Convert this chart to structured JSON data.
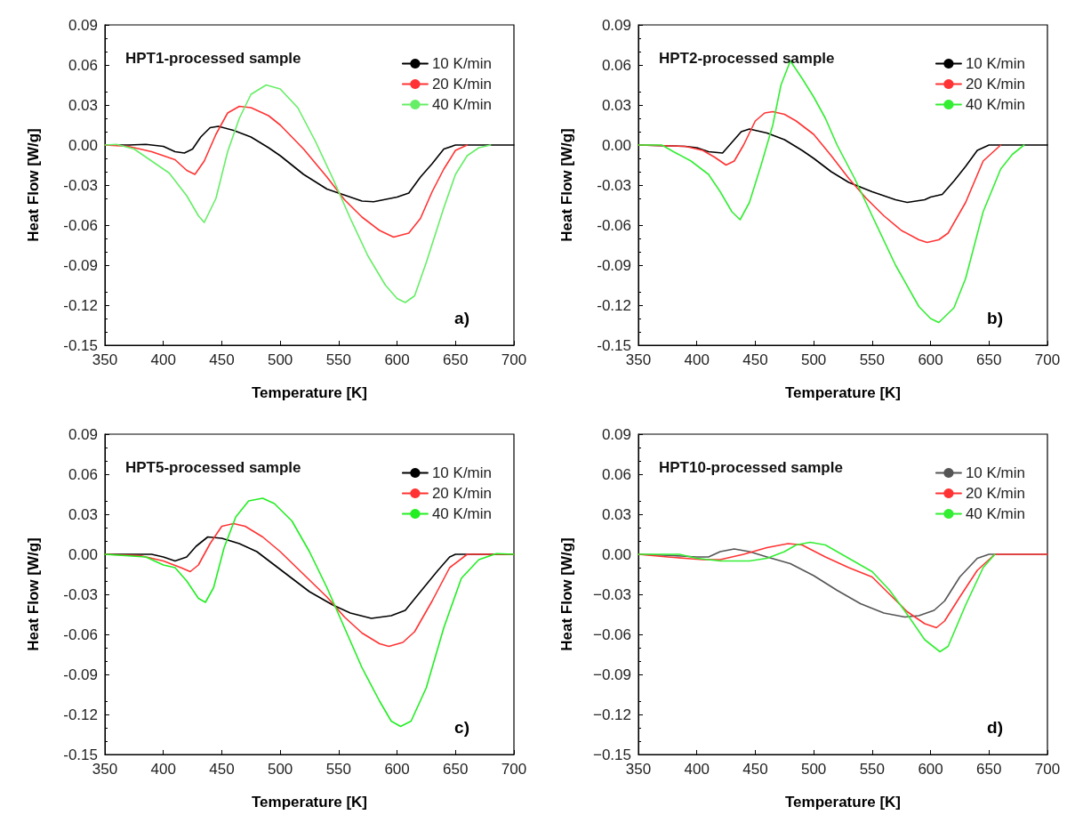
{
  "chart_data": [
    {
      "type": "line",
      "title": "HPT1-processed sample",
      "xlabel": "Temperature [K]",
      "ylabel": "Heat Flow [W/g]",
      "annotations": [
        "a)"
      ],
      "legend": "top right",
      "grid": false,
      "marker": "none",
      "line_style": "solid",
      "xlim": [
        350,
        700
      ],
      "xticks": [
        350,
        400,
        450,
        500,
        550,
        600,
        650,
        700
      ],
      "ylim": [
        -0.15,
        0.09
      ],
      "yticks": [
        {
          "value": -0.15,
          "label": "-0.15"
        },
        {
          "value": -0.12,
          "label": "-0.12"
        },
        {
          "value": -0.09,
          "label": "-0.09"
        },
        {
          "value": -0.06,
          "label": "-0.06"
        },
        {
          "value": -0.03,
          "label": "-0.03"
        },
        {
          "value": 0,
          "label": "0.00"
        },
        {
          "value": 0.03,
          "label": "0.03"
        },
        {
          "value": 0.06,
          "label": "0.06"
        },
        {
          "value": 0.09,
          "label": "0.09"
        }
      ],
      "series": [
        {
          "name": "10 K/min",
          "color": "#000000",
          "x": [
            350,
            370,
            385,
            400,
            410,
            418,
            425,
            432,
            440,
            447,
            460,
            475,
            490,
            500,
            520,
            540,
            560,
            570,
            580,
            600,
            610,
            620,
            630,
            640,
            650,
            700
          ],
          "values": [
            0,
            0,
            0.0005,
            -0.001,
            -0.005,
            -0.006,
            -0.003,
            0.006,
            0.013,
            0.014,
            0.011,
            0.006,
            -0.002,
            -0.008,
            -0.022,
            -0.033,
            -0.039,
            -0.042,
            -0.0425,
            -0.039,
            -0.036,
            -0.024,
            -0.014,
            -0.003,
            0,
            0
          ]
        },
        {
          "name": "20 K/min",
          "color": "#ff3333",
          "x": [
            350,
            370,
            390,
            410,
            420,
            427,
            435,
            445,
            455,
            465,
            475,
            490,
            500,
            520,
            540,
            555,
            570,
            585,
            597,
            610,
            620,
            630,
            640,
            650,
            660
          ],
          "values": [
            0,
            -0.001,
            -0.005,
            -0.011,
            -0.019,
            -0.022,
            -0.012,
            0.008,
            0.024,
            0.029,
            0.028,
            0.022,
            0.015,
            -0.003,
            -0.024,
            -0.041,
            -0.054,
            -0.064,
            -0.069,
            -0.066,
            -0.055,
            -0.035,
            -0.018,
            -0.004,
            0
          ]
        },
        {
          "name": "40 K/min",
          "color": "#66ee66",
          "x": [
            350,
            360,
            375,
            390,
            405,
            420,
            430,
            435,
            445,
            455,
            465,
            475,
            488,
            500,
            515,
            530,
            545,
            560,
            575,
            590,
            600,
            607,
            615,
            625,
            640,
            650,
            660,
            670,
            680
          ],
          "values": [
            0,
            0.0005,
            -0.003,
            -0.012,
            -0.021,
            -0.038,
            -0.053,
            -0.058,
            -0.04,
            -0.005,
            0.02,
            0.038,
            0.045,
            0.042,
            0.028,
            0.003,
            -0.025,
            -0.055,
            -0.083,
            -0.105,
            -0.115,
            -0.118,
            -0.113,
            -0.088,
            -0.047,
            -0.022,
            -0.008,
            -0.002,
            0
          ]
        }
      ]
    },
    {
      "type": "line",
      "title": "HPT2-processed sample",
      "xlabel": "Temperature [K]",
      "ylabel": "Heat Flow [W/g]",
      "annotations": [
        "b)"
      ],
      "legend": "top right",
      "grid": false,
      "marker": "none",
      "line_style": "solid",
      "xlim": [
        350,
        700
      ],
      "xticks": [
        350,
        400,
        450,
        500,
        550,
        600,
        650,
        700
      ],
      "ylim": [
        -0.15,
        0.09
      ],
      "yticks": [
        {
          "value": -0.15,
          "label": "-0.15"
        },
        {
          "value": -0.12,
          "label": "-0.12"
        },
        {
          "value": -0.09,
          "label": "-0.09"
        },
        {
          "value": -0.06,
          "label": "-0.06"
        },
        {
          "value": -0.03,
          "label": "-0.03"
        },
        {
          "value": 0,
          "label": "0.00"
        },
        {
          "value": 0.03,
          "label": "0.03"
        },
        {
          "value": 0.06,
          "label": "0.06"
        },
        {
          "value": 0.09,
          "label": "0.09"
        }
      ],
      "series": [
        {
          "name": "10 K/min",
          "color": "#000000",
          "x": [
            350,
            390,
            400,
            410,
            422,
            430,
            438,
            445,
            460,
            475,
            490,
            500,
            515,
            530,
            550,
            570,
            580,
            595,
            600,
            610,
            620,
            630,
            640,
            650,
            700
          ],
          "values": [
            0,
            -0.001,
            -0.002,
            -0.005,
            -0.006,
            0.002,
            0.01,
            0.012,
            0.009,
            0.004,
            -0.004,
            -0.01,
            -0.02,
            -0.028,
            -0.035,
            -0.041,
            -0.043,
            -0.041,
            -0.039,
            -0.037,
            -0.027,
            -0.016,
            -0.004,
            0,
            0
          ]
        },
        {
          "name": "20 K/min",
          "color": "#ff3333",
          "x": [
            350,
            390,
            405,
            415,
            425,
            432,
            440,
            450,
            458,
            465,
            475,
            485,
            500,
            515,
            530,
            545,
            560,
            575,
            590,
            597,
            607,
            615,
            630,
            645,
            660
          ],
          "values": [
            0,
            -0.001,
            -0.004,
            -0.009,
            -0.015,
            -0.012,
            0,
            0.018,
            0.024,
            0.025,
            0.023,
            0.018,
            0.008,
            -0.008,
            -0.025,
            -0.04,
            -0.053,
            -0.064,
            -0.071,
            -0.073,
            -0.071,
            -0.066,
            -0.043,
            -0.012,
            0
          ]
        },
        {
          "name": "40 K/min",
          "color": "#33ee33",
          "x": [
            350,
            370,
            380,
            395,
            410,
            420,
            430,
            437,
            445,
            455,
            465,
            472,
            480,
            490,
            500,
            510,
            520,
            535,
            550,
            570,
            590,
            600,
            607,
            620,
            630,
            645,
            660,
            670,
            680
          ],
          "values": [
            0,
            0,
            -0.005,
            -0.012,
            -0.022,
            -0.035,
            -0.05,
            -0.056,
            -0.043,
            -0.015,
            0.015,
            0.045,
            0.063,
            0.05,
            0.036,
            0.02,
            0,
            -0.025,
            -0.053,
            -0.09,
            -0.121,
            -0.13,
            -0.133,
            -0.122,
            -0.1,
            -0.05,
            -0.018,
            -0.007,
            0
          ]
        }
      ]
    },
    {
      "type": "line",
      "title": "HPT5-processed sample",
      "xlabel": "Temperature [K]",
      "ylabel": "Heat Flow [W/g]",
      "annotations": [
        "c)"
      ],
      "legend": "top right",
      "grid": false,
      "marker": "none",
      "line_style": "solid",
      "xlim": [
        350,
        700
      ],
      "xticks": [
        350,
        400,
        450,
        500,
        550,
        600,
        650,
        700
      ],
      "ylim": [
        -0.15,
        0.09
      ],
      "yticks": [
        {
          "value": -0.15,
          "label": "-0.15"
        },
        {
          "value": -0.12,
          "label": "-0.12"
        },
        {
          "value": -0.09,
          "label": "-0.09"
        },
        {
          "value": -0.06,
          "label": "-0.06"
        },
        {
          "value": -0.03,
          "label": "-0.03"
        },
        {
          "value": 0,
          "label": "0.00"
        },
        {
          "value": 0.03,
          "label": "0.03"
        },
        {
          "value": 0.06,
          "label": "0.06"
        },
        {
          "value": 0.09,
          "label": "0.09"
        }
      ],
      "series": [
        {
          "name": "10 K/min",
          "color": "#000000",
          "x": [
            350,
            390,
            400,
            410,
            420,
            428,
            438,
            450,
            465,
            480,
            495,
            510,
            525,
            545,
            560,
            578,
            595,
            607,
            620,
            635,
            645,
            650,
            700
          ],
          "values": [
            0,
            0,
            -0.002,
            -0.005,
            -0.002,
            0.006,
            0.013,
            0.012,
            0.008,
            0.002,
            -0.008,
            -0.018,
            -0.028,
            -0.038,
            -0.044,
            -0.048,
            -0.046,
            -0.042,
            -0.028,
            -0.012,
            -0.002,
            0,
            0
          ]
        },
        {
          "name": "20 K/min",
          "color": "#ff3333",
          "x": [
            350,
            380,
            400,
            415,
            423,
            430,
            440,
            450,
            460,
            470,
            485,
            500,
            520,
            540,
            555,
            570,
            585,
            593,
            605,
            615,
            630,
            645,
            660,
            700
          ],
          "values": [
            0,
            -0.001,
            -0.005,
            -0.01,
            -0.013,
            -0.008,
            0.008,
            0.021,
            0.023,
            0.021,
            0.013,
            0.002,
            -0.015,
            -0.032,
            -0.047,
            -0.059,
            -0.067,
            -0.069,
            -0.066,
            -0.058,
            -0.035,
            -0.01,
            0,
            0
          ]
        },
        {
          "name": "40 K/min",
          "color": "#22ee22",
          "x": [
            350,
            385,
            400,
            410,
            420,
            430,
            436,
            443,
            452,
            462,
            473,
            485,
            495,
            510,
            525,
            540,
            555,
            570,
            585,
            595,
            603,
            612,
            625,
            640,
            655,
            670,
            685,
            700
          ],
          "values": [
            0,
            -0.002,
            -0.008,
            -0.01,
            -0.02,
            -0.033,
            -0.036,
            -0.025,
            0.005,
            0.028,
            0.04,
            0.042,
            0.038,
            0.025,
            0.002,
            -0.025,
            -0.055,
            -0.085,
            -0.11,
            -0.125,
            -0.129,
            -0.125,
            -0.1,
            -0.055,
            -0.018,
            -0.004,
            0.0005,
            0
          ]
        }
      ]
    },
    {
      "type": "line",
      "title": "HPT10-processed sample",
      "xlabel": "Temperature [K]",
      "ylabel": "Heat Flow [W/g]",
      "annotations": [
        "d)"
      ],
      "legend": "top right",
      "grid": false,
      "marker": "none",
      "line_style": "solid",
      "xlim": [
        350,
        700
      ],
      "xticks": [
        350,
        400,
        450,
        500,
        550,
        600,
        650,
        700
      ],
      "ylim": [
        -0.15,
        0.09
      ],
      "yticks": [
        {
          "value": -0.15,
          "label": "−0.15"
        },
        {
          "value": -0.12,
          "label": "−0.12"
        },
        {
          "value": -0.09,
          "label": "−0.09"
        },
        {
          "value": -0.06,
          "label": "−0.06"
        },
        {
          "value": -0.03,
          "label": "−0.03"
        },
        {
          "value": 0,
          "label": "0.00"
        },
        {
          "value": 0.03,
          "label": "0.03"
        },
        {
          "value": 0.06,
          "label": "0.06"
        },
        {
          "value": 0.09,
          "label": "0.09"
        }
      ],
      "series": [
        {
          "name": "10 K/min",
          "color": "#555555",
          "x": [
            350,
            380,
            400,
            410,
            420,
            432,
            445,
            460,
            480,
            500,
            520,
            540,
            560,
            578,
            590,
            603,
            612,
            625,
            640,
            650,
            700
          ],
          "values": [
            0,
            -0.001,
            -0.002,
            -0.002,
            0.002,
            0.004,
            0.002,
            -0.002,
            -0.007,
            -0.016,
            -0.027,
            -0.037,
            -0.044,
            -0.047,
            -0.046,
            -0.042,
            -0.035,
            -0.017,
            -0.003,
            0,
            0
          ]
        },
        {
          "name": "20 K/min",
          "color": "#ff3333",
          "x": [
            350,
            375,
            390,
            405,
            420,
            440,
            460,
            478,
            490,
            510,
            530,
            550,
            565,
            580,
            595,
            605,
            612,
            625,
            640,
            655,
            700
          ],
          "values": [
            0,
            -0.002,
            -0.003,
            -0.004,
            -0.004,
            0,
            0.005,
            0.008,
            0.007,
            -0.002,
            -0.01,
            -0.017,
            -0.03,
            -0.043,
            -0.052,
            -0.055,
            -0.05,
            -0.032,
            -0.012,
            0,
            0
          ]
        },
        {
          "name": "40 K/min",
          "color": "#33ee33",
          "x": [
            350,
            385,
            400,
            420,
            445,
            460,
            475,
            485,
            497,
            510,
            530,
            550,
            565,
            580,
            595,
            608,
            615,
            630,
            645,
            655
          ],
          "values": [
            0,
            0,
            -0.003,
            -0.005,
            -0.005,
            -0.003,
            0.002,
            0.007,
            0.009,
            0.007,
            -0.003,
            -0.013,
            -0.027,
            -0.045,
            -0.064,
            -0.073,
            -0.069,
            -0.038,
            -0.01,
            0
          ]
        }
      ]
    }
  ]
}
